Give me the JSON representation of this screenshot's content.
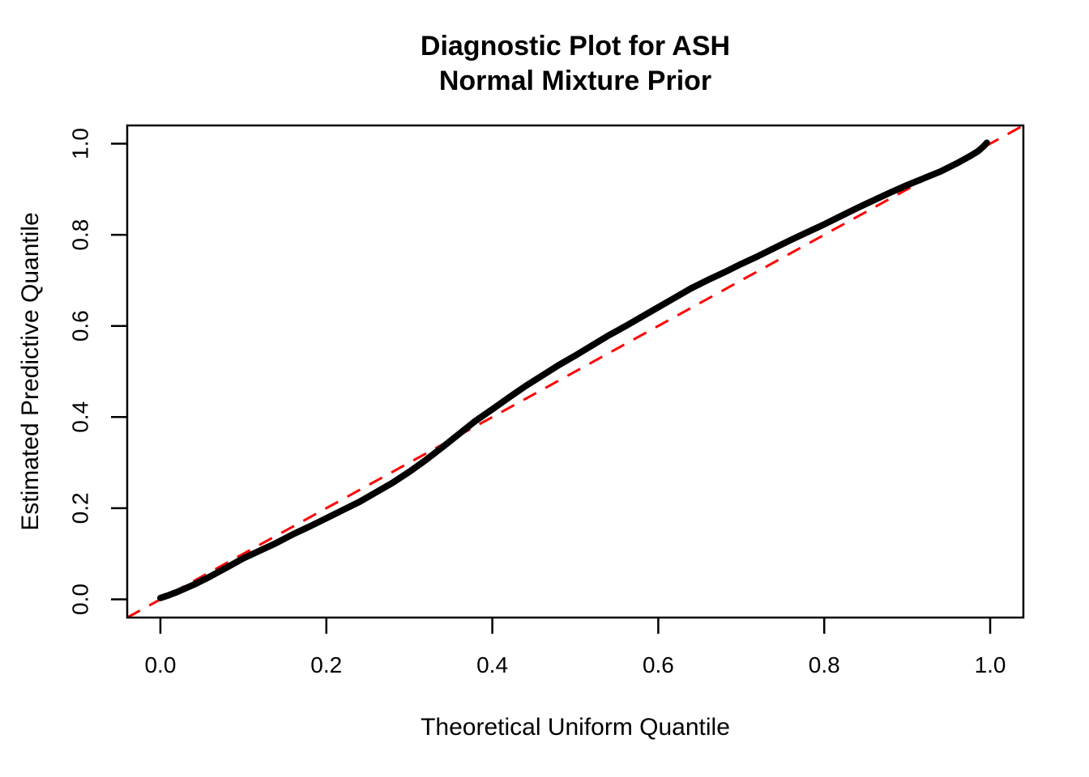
{
  "figure": {
    "title_line1": "Diagnostic Plot for ASH",
    "title_line2": "Normal Mixture Prior",
    "xlabel": "Theoretical Uniform Quantile",
    "ylabel": "Estimated Predictive Quantile"
  },
  "chart_data": {
    "type": "line",
    "title": "Diagnostic Plot for ASH\nNormal Mixture Prior",
    "xlabel": "Theoretical Uniform Quantile",
    "ylabel": "Estimated Predictive Quantile",
    "xlim": [
      -0.04,
      1.04
    ],
    "ylim": [
      -0.04,
      1.04
    ],
    "grid": false,
    "legend": null,
    "x_tick_values": [
      0.0,
      0.2,
      0.4,
      0.6,
      0.8,
      1.0
    ],
    "x_tick_labels": [
      "0.0",
      "0.2",
      "0.4",
      "0.6",
      "0.8",
      "1.0"
    ],
    "y_tick_values": [
      0.0,
      0.2,
      0.4,
      0.6,
      0.8,
      1.0
    ],
    "y_tick_labels": [
      "0.0",
      "0.2",
      "0.4",
      "0.6",
      "0.8",
      "1.0"
    ],
    "colors": {
      "curve": "#000000",
      "reference": "#FF0000",
      "axis": "#000000"
    },
    "series": [
      {
        "name": "estimated_predictive_vs_theoretical_uniform_quantiles",
        "type": "line",
        "style": "solid-thick",
        "color": "#000000",
        "x": [
          0.0,
          0.01,
          0.02,
          0.04,
          0.06,
          0.08,
          0.1,
          0.12,
          0.14,
          0.16,
          0.18,
          0.2,
          0.22,
          0.24,
          0.26,
          0.28,
          0.3,
          0.32,
          0.34,
          0.36,
          0.38,
          0.4,
          0.42,
          0.44,
          0.46,
          0.48,
          0.5,
          0.52,
          0.54,
          0.56,
          0.58,
          0.6,
          0.62,
          0.64,
          0.66,
          0.68,
          0.7,
          0.72,
          0.74,
          0.76,
          0.78,
          0.8,
          0.82,
          0.84,
          0.86,
          0.88,
          0.9,
          0.92,
          0.94,
          0.96,
          0.975,
          0.985,
          0.992,
          0.996
        ],
        "y": [
          0.003,
          0.009,
          0.016,
          0.032,
          0.05,
          0.07,
          0.09,
          0.107,
          0.124,
          0.143,
          0.16,
          0.178,
          0.196,
          0.214,
          0.235,
          0.256,
          0.28,
          0.306,
          0.334,
          0.363,
          0.392,
          0.417,
          0.443,
          0.468,
          0.491,
          0.514,
          0.535,
          0.557,
          0.579,
          0.599,
          0.62,
          0.641,
          0.662,
          0.683,
          0.701,
          0.718,
          0.736,
          0.753,
          0.771,
          0.789,
          0.806,
          0.823,
          0.841,
          0.859,
          0.876,
          0.893,
          0.909,
          0.924,
          0.939,
          0.957,
          0.972,
          0.983,
          0.994,
          1.002
        ]
      },
      {
        "name": "reference_diagonal_y_equals_x",
        "type": "line",
        "style": "dashed",
        "color": "#FF0000",
        "x": [
          -0.04,
          1.04
        ],
        "y": [
          -0.04,
          1.04
        ]
      }
    ]
  }
}
